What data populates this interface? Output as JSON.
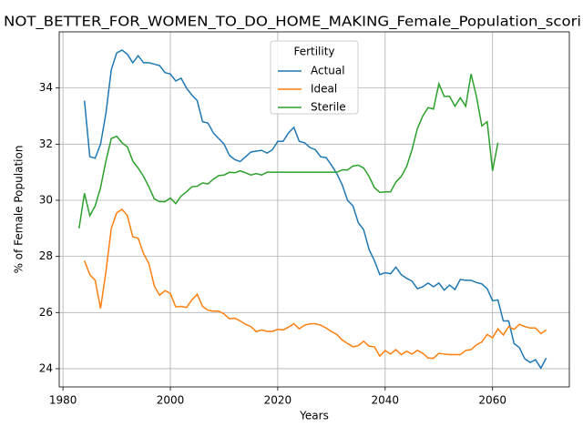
{
  "chart_data": {
    "type": "line",
    "title": "NOT_BETTER_FOR_WOMEN_TO_DO_HOME_MAKING_Female_Population_scori",
    "xlabel": "Years",
    "ylabel": "% of Female Population",
    "legend_title": "Fertility",
    "legend": "upper center",
    "grid": true,
    "xlim": [
      1979.3,
      2074.3
    ],
    "xticks": [
      1980,
      2000,
      2020,
      2040,
      2060
    ],
    "ylim": [
      23.35,
      36.0
    ],
    "yticks": [
      24,
      26,
      28,
      30,
      32,
      34
    ],
    "x": [
      1983,
      1984,
      1985,
      1986,
      1987,
      1988,
      1989,
      1990,
      1991,
      1992,
      1993,
      1994,
      1995,
      1996,
      1997,
      1998,
      1999,
      2000,
      2001,
      2002,
      2003,
      2004,
      2005,
      2006,
      2007,
      2008,
      2009,
      2010,
      2011,
      2012,
      2013,
      2014,
      2015,
      2016,
      2017,
      2018,
      2019,
      2020,
      2021,
      2022,
      2023,
      2024,
      2025,
      2026,
      2027,
      2028,
      2029,
      2030,
      2031,
      2032,
      2033,
      2034,
      2035,
      2036,
      2037,
      2038,
      2039,
      2040,
      2041,
      2042,
      2043,
      2044,
      2045,
      2046,
      2047,
      2048,
      2049,
      2050,
      2051,
      2052,
      2053,
      2054,
      2055,
      2056,
      2057,
      2058,
      2059,
      2060,
      2061,
      2062,
      2063,
      2064,
      2065,
      2066,
      2067,
      2068,
      2069,
      2070
    ],
    "series": [
      {
        "name": "Actual",
        "color": "#1f77b4",
        "values": [
          null,
          33.55,
          31.55,
          31.5,
          32.0,
          33.1,
          34.65,
          35.25,
          35.35,
          35.2,
          34.9,
          35.15,
          34.9,
          34.9,
          34.85,
          34.8,
          34.55,
          34.5,
          34.25,
          34.35,
          34.0,
          33.75,
          33.55,
          32.8,
          32.75,
          32.4,
          32.2,
          32.0,
          31.6,
          31.45,
          31.38,
          31.55,
          31.72,
          31.75,
          31.78,
          31.68,
          31.8,
          32.1,
          32.1,
          32.4,
          32.6,
          32.1,
          32.05,
          31.88,
          31.8,
          31.55,
          31.52,
          31.25,
          30.95,
          30.55,
          30.0,
          29.8,
          29.2,
          28.95,
          28.25,
          27.85,
          27.35,
          27.42,
          27.38,
          27.62,
          27.35,
          27.22,
          27.12,
          26.85,
          26.92,
          27.05,
          26.92,
          27.05,
          26.8,
          26.98,
          26.82,
          27.18,
          27.15,
          27.15,
          27.07,
          27.02,
          26.85,
          26.42,
          26.45,
          25.7,
          25.7,
          24.9,
          24.75,
          24.35,
          24.22,
          24.32,
          24.02,
          24.38
        ]
      },
      {
        "name": "Ideal",
        "color": "#ff7f0e",
        "values": [
          null,
          27.85,
          27.35,
          27.15,
          26.15,
          27.45,
          29.0,
          29.55,
          29.68,
          29.45,
          28.7,
          28.65,
          28.1,
          27.75,
          26.95,
          26.62,
          26.78,
          26.68,
          26.2,
          26.22,
          26.18,
          26.45,
          26.65,
          26.22,
          26.08,
          26.05,
          26.05,
          25.95,
          25.78,
          25.8,
          25.7,
          25.58,
          25.5,
          25.32,
          25.38,
          25.33,
          25.33,
          25.4,
          25.38,
          25.48,
          25.6,
          25.42,
          25.55,
          25.6,
          25.6,
          25.55,
          25.45,
          25.32,
          25.22,
          25.02,
          24.9,
          24.78,
          24.82,
          24.98,
          24.8,
          24.78,
          24.45,
          24.65,
          24.52,
          24.68,
          24.5,
          24.62,
          24.52,
          24.65,
          24.55,
          24.38,
          24.37,
          24.55,
          24.52,
          24.5,
          24.5,
          24.5,
          24.65,
          24.68,
          24.85,
          24.95,
          25.22,
          25.1,
          25.42,
          25.2,
          25.5,
          25.4,
          25.58,
          25.5,
          25.45,
          25.45,
          25.25,
          25.38
        ]
      },
      {
        "name": "Sterile",
        "color": "#2ca02c",
        "values": [
          29.0,
          30.25,
          29.45,
          29.8,
          30.45,
          31.4,
          32.2,
          32.28,
          32.05,
          31.9,
          31.4,
          31.15,
          30.85,
          30.48,
          30.05,
          29.95,
          29.95,
          30.08,
          29.88,
          30.15,
          30.3,
          30.48,
          30.5,
          30.62,
          30.58,
          30.75,
          30.88,
          30.9,
          31.0,
          30.98,
          31.05,
          30.98,
          30.9,
          30.95,
          30.9,
          31.0,
          31.0,
          31.0,
          31.0,
          31.0,
          31.0,
          31.0,
          31.0,
          31.0,
          31.0,
          31.0,
          31.0,
          31.0,
          31.0,
          31.08,
          31.08,
          31.22,
          31.25,
          31.15,
          30.85,
          30.45,
          30.28,
          30.3,
          30.3,
          30.65,
          30.85,
          31.2,
          31.8,
          32.55,
          33.0,
          33.3,
          33.25,
          34.15,
          33.7,
          33.7,
          33.35,
          33.65,
          33.35,
          34.5,
          33.7,
          32.65,
          32.8,
          31.05,
          32.05,
          null,
          null,
          null,
          null,
          null,
          null,
          null,
          null,
          null
        ]
      }
    ]
  }
}
